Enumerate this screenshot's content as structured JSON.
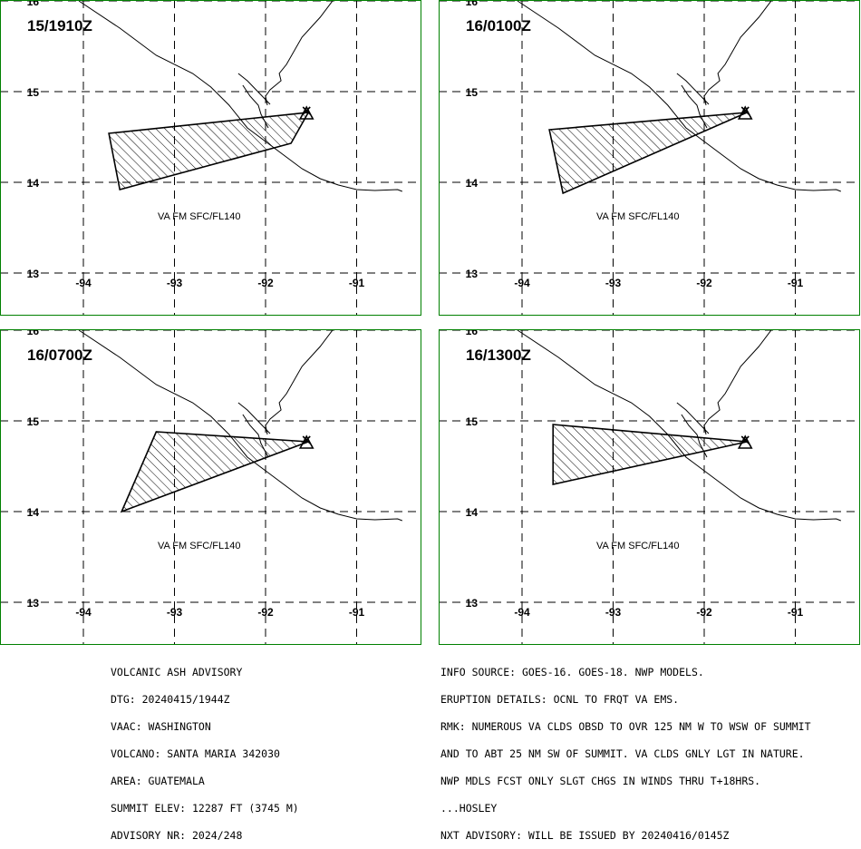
{
  "panels": [
    {
      "time": "15/1910Z",
      "label": "VA FM SFC/FL140",
      "polygon": [
        [
          -93.72,
          14.54
        ],
        [
          -91.53,
          14.77
        ],
        [
          -91.72,
          14.43
        ],
        [
          -93.6,
          13.92
        ]
      ]
    },
    {
      "time": "16/0100Z",
      "label": "VA FM SFC/FL140",
      "polygon": [
        [
          -93.7,
          14.58
        ],
        [
          -91.53,
          14.77
        ],
        [
          -93.55,
          13.88
        ]
      ]
    },
    {
      "time": "16/0700Z",
      "label": "VA FM SFC/FL140",
      "polygon": [
        [
          -93.2,
          14.88
        ],
        [
          -91.53,
          14.77
        ],
        [
          -93.58,
          14.0
        ]
      ]
    },
    {
      "time": "16/1300Z",
      "label": "VA FM SFC/FL140",
      "polygon": [
        [
          -93.66,
          14.96
        ],
        [
          -91.53,
          14.77
        ],
        [
          -93.66,
          14.3
        ]
      ]
    }
  ],
  "axes": {
    "lon_ticks": [
      "-94",
      "-93",
      "-92",
      "-91"
    ],
    "lat_ticks": [
      "16",
      "15",
      "14",
      "13"
    ],
    "lon_range": [
      -94.5,
      -90.3
    ],
    "lat_range": [
      13.0,
      16.0
    ]
  },
  "volcano": {
    "name": "SANTA MARIA",
    "lon": -91.55,
    "lat": 14.76
  },
  "colors": {
    "frame": "#008000",
    "ink": "#000000"
  },
  "advisory_left": [
    "VOLCANIC ASH ADVISORY",
    "DTG: 20240415/1944Z",
    "VAAC: WASHINGTON",
    "VOLCANO: SANTA MARIA 342030",
    "AREA: GUATEMALA",
    "SUMMIT ELEV: 12287 FT (3745 M)",
    "ADVISORY NR: 2024/248"
  ],
  "advisory_right": [
    "INFO SOURCE: GOES-16. GOES-18. NWP MODELS.",
    "ERUPTION DETAILS: OCNL TO FRQT VA EMS.",
    "RMK: NUMEROUS VA CLDS OBSD TO OVR 125 NM W TO WSW OF SUMMIT",
    "AND TO ABT 25 NM SW OF SUMMIT. VA CLDS GNLY LGT IN NATURE.",
    "NWP MDLS FCST ONLY SLGT CHGS IN WINDS THRU T+18HRS.",
    "...HOSLEY",
    "NXT ADVISORY: WILL BE ISSUED BY 20240416/0145Z"
  ]
}
